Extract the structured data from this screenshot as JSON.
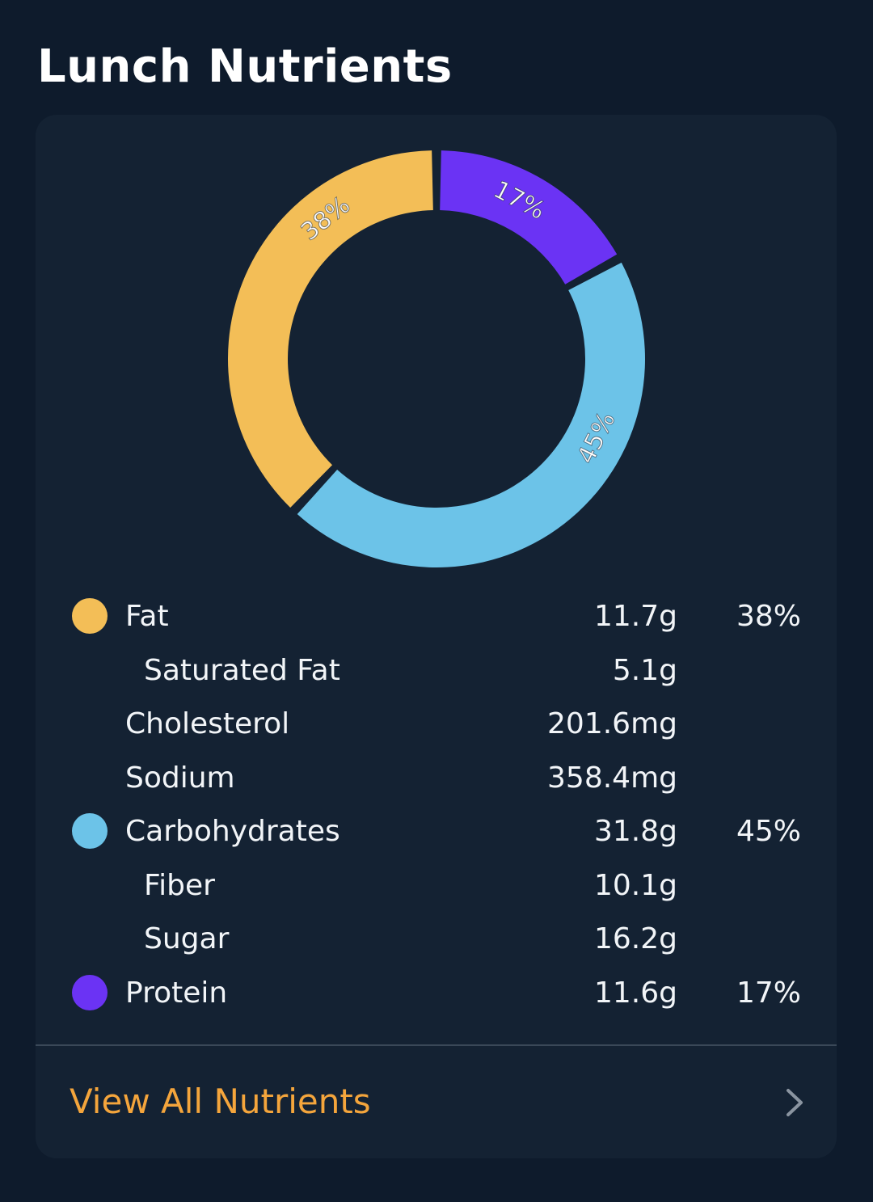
{
  "title": "Lunch Nutrients",
  "chart_data": {
    "type": "pie",
    "categories": [
      "Protein",
      "Carbohydrates",
      "Fat"
    ],
    "values": [
      17,
      45,
      38
    ],
    "labels": [
      "17%",
      "45%",
      "38%"
    ],
    "colors": [
      "#6b33f4",
      "#6cc3e8",
      "#f3be57"
    ]
  },
  "nutrients": [
    {
      "label": "Fat",
      "amount": "11.7g",
      "percent": "38%",
      "color": "#f3be57",
      "sub": false
    },
    {
      "label": "Saturated Fat",
      "amount": "5.1g",
      "percent": "",
      "color": "",
      "sub": true
    },
    {
      "label": "Cholesterol",
      "amount": "201.6mg",
      "percent": "",
      "color": "",
      "sub": false
    },
    {
      "label": "Sodium",
      "amount": "358.4mg",
      "percent": "",
      "color": "",
      "sub": false
    },
    {
      "label": "Carbohydrates",
      "amount": "31.8g",
      "percent": "45%",
      "color": "#6cc3e8",
      "sub": false
    },
    {
      "label": "Fiber",
      "amount": "10.1g",
      "percent": "",
      "color": "",
      "sub": true
    },
    {
      "label": "Sugar",
      "amount": "16.2g",
      "percent": "",
      "color": "",
      "sub": true
    },
    {
      "label": "Protein",
      "amount": "11.6g",
      "percent": "17%",
      "color": "#6b33f4",
      "sub": false
    }
  ],
  "footer": {
    "link_label": "View All Nutrients",
    "icon": "chevron-right-icon"
  },
  "colors": {
    "accent": "#f4a53c"
  }
}
